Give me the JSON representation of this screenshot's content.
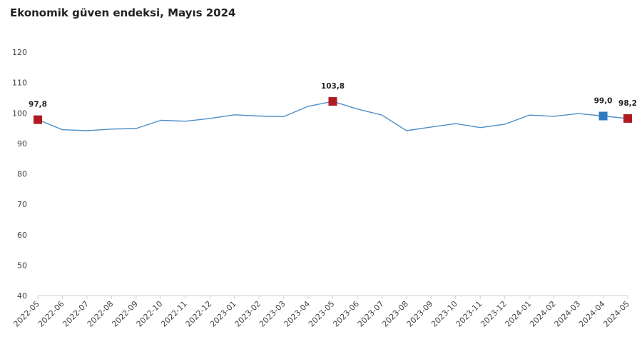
{
  "title": "Ekonomik güven endeksi, Mayıs 2024",
  "chart_data": {
    "type": "line",
    "title": "Ekonomik güven endeksi, Mayıs 2024",
    "xlabel": "",
    "ylabel": "",
    "ylim": [
      40,
      120
    ],
    "yticks": [
      "120",
      "110",
      "100",
      "90",
      "80",
      "70",
      "60",
      "50",
      "40"
    ],
    "grid": false,
    "categories": [
      "2022-05",
      "2022-06",
      "2022-07",
      "2022-08",
      "2022-09",
      "2022-10",
      "2022-11",
      "2022-12",
      "2023-01",
      "2023-02",
      "2023-03",
      "2023-04",
      "2023-05",
      "2023-06",
      "2023-07",
      "2023-08",
      "2023-09",
      "2023-10",
      "2023-11",
      "2023-12",
      "2024-01",
      "2024-02",
      "2024-03",
      "2024-04",
      "2024-05"
    ],
    "series": [
      {
        "values": [
          97.8,
          94.5,
          94.2,
          94.7,
          94.9,
          97.6,
          97.3,
          98.2,
          99.4,
          99.0,
          98.8,
          102.2,
          103.8,
          101.3,
          99.3,
          94.2,
          95.4,
          96.5,
          95.2,
          96.3,
          99.3,
          98.9,
          99.8,
          99.0,
          98.2
        ],
        "color": "#4f8fc8"
      }
    ],
    "markers": [
      {
        "index": 0,
        "label": "97,8",
        "color": "#b01a22"
      },
      {
        "index": 12,
        "label": "103,8",
        "color": "#b01a22"
      },
      {
        "index": 23,
        "label": "99,0",
        "color": "#2c7bbf"
      },
      {
        "index": 24,
        "label": "98,2",
        "color": "#b01a22"
      }
    ]
  }
}
